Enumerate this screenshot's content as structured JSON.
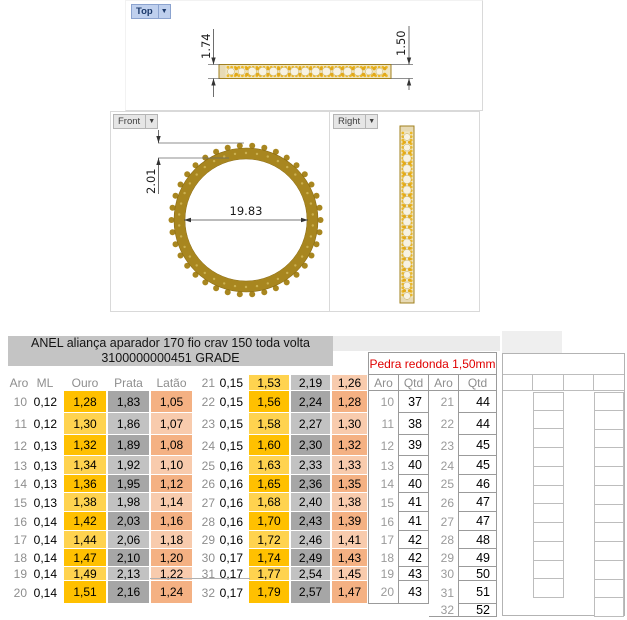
{
  "views": {
    "top": {
      "label": "Top",
      "dim_left": "1.74",
      "dim_right": "1.50"
    },
    "front": {
      "label": "Front",
      "dim_thickness": "2.01",
      "dim_diameter": "19.83"
    },
    "right": {
      "label": "Right"
    }
  },
  "spec_header": {
    "line1": "ANEL aliança aparador 170 fio crav 150 toda volta",
    "line2": "3100000000451 GRADE"
  },
  "main_table": {
    "headers": [
      "Aro",
      "ML",
      "Ouro",
      "Prata",
      "Latão"
    ],
    "rows_left": [
      {
        "aro": "10",
        "ml": "0,12",
        "ouro": "1,28",
        "prata": "1,83",
        "latao": "1,05"
      },
      {
        "aro": "11",
        "ml": "0,12",
        "ouro": "1,30",
        "prata": "1,86",
        "latao": "1,07"
      },
      {
        "aro": "12",
        "ml": "0,13",
        "ouro": "1,32",
        "prata": "1,89",
        "latao": "1,08"
      },
      {
        "aro": "13",
        "ml": "0,13",
        "ouro": "1,34",
        "prata": "1,92",
        "latao": "1,10"
      },
      {
        "aro": "14",
        "ml": "0,13",
        "ouro": "1,36",
        "prata": "1,95",
        "latao": "1,12"
      },
      {
        "aro": "15",
        "ml": "0,13",
        "ouro": "1,38",
        "prata": "1,98",
        "latao": "1,14"
      },
      {
        "aro": "16",
        "ml": "0,14",
        "ouro": "1,42",
        "prata": "2,03",
        "latao": "1,16"
      },
      {
        "aro": "17",
        "ml": "0,14",
        "ouro": "1,44",
        "prata": "2,06",
        "latao": "1,18"
      },
      {
        "aro": "18",
        "ml": "0,14",
        "ouro": "1,47",
        "prata": "2,10",
        "latao": "1,20"
      },
      {
        "aro": "19",
        "ml": "0,14",
        "ouro": "1,49",
        "prata": "2,13",
        "latao": "1,22"
      },
      {
        "aro": "20",
        "ml": "0,14",
        "ouro": "1,51",
        "prata": "2,16",
        "latao": "1,24"
      }
    ],
    "rows_right": [
      {
        "aro": "21",
        "ml": "0,15",
        "ouro": "1,53",
        "prata": "2,19",
        "latao": "1,26"
      },
      {
        "aro": "22",
        "ml": "0,15",
        "ouro": "1,56",
        "prata": "2,24",
        "latao": "1,28"
      },
      {
        "aro": "23",
        "ml": "0,15",
        "ouro": "1,58",
        "prata": "2,27",
        "latao": "1,30"
      },
      {
        "aro": "24",
        "ml": "0,15",
        "ouro": "1,60",
        "prata": "2,30",
        "latao": "1,32"
      },
      {
        "aro": "25",
        "ml": "0,16",
        "ouro": "1,63",
        "prata": "2,33",
        "latao": "1,33"
      },
      {
        "aro": "26",
        "ml": "0,16",
        "ouro": "1,65",
        "prata": "2,36",
        "latao": "1,35"
      },
      {
        "aro": "27",
        "ml": "0,16",
        "ouro": "1,68",
        "prata": "2,40",
        "latao": "1,38"
      },
      {
        "aro": "28",
        "ml": "0,16",
        "ouro": "1,70",
        "prata": "2,43",
        "latao": "1,39"
      },
      {
        "aro": "29",
        "ml": "0,16",
        "ouro": "1,72",
        "prata": "2,46",
        "latao": "1,41"
      },
      {
        "aro": "30",
        "ml": "0,17",
        "ouro": "1,74",
        "prata": "2,49",
        "latao": "1,43"
      },
      {
        "aro": "31",
        "ml": "0,17",
        "ouro": "1,77",
        "prata": "2,54",
        "latao": "1,45"
      },
      {
        "aro": "32",
        "ml": "0,17",
        "ouro": "1,79",
        "prata": "2,57",
        "latao": "1,47"
      }
    ]
  },
  "stone_table": {
    "title": "Pedra redonda 1,50mm",
    "headers": [
      "Aro",
      "Qtd",
      "Aro",
      "Qtd"
    ],
    "rows_left": [
      {
        "aro": "10",
        "qtd": "37"
      },
      {
        "aro": "11",
        "qtd": "38"
      },
      {
        "aro": "12",
        "qtd": "39"
      },
      {
        "aro": "13",
        "qtd": "40"
      },
      {
        "aro": "14",
        "qtd": "40"
      },
      {
        "aro": "15",
        "qtd": "41"
      },
      {
        "aro": "16",
        "qtd": "41"
      },
      {
        "aro": "17",
        "qtd": "42"
      },
      {
        "aro": "18",
        "qtd": "42"
      },
      {
        "aro": "19",
        "qtd": "43"
      },
      {
        "aro": "20",
        "qtd": "43"
      }
    ],
    "rows_right": [
      {
        "aro": "21",
        "qtd": "44"
      },
      {
        "aro": "22",
        "qtd": "44"
      },
      {
        "aro": "23",
        "qtd": "45"
      },
      {
        "aro": "24",
        "qtd": "45"
      },
      {
        "aro": "25",
        "qtd": "46"
      },
      {
        "aro": "26",
        "qtd": "47"
      },
      {
        "aro": "27",
        "qtd": "47"
      },
      {
        "aro": "28",
        "qtd": "48"
      },
      {
        "aro": "29",
        "qtd": "49"
      },
      {
        "aro": "30",
        "qtd": "50"
      },
      {
        "aro": "31",
        "qtd": "51"
      },
      {
        "aro": "32",
        "qtd": "52"
      }
    ]
  },
  "empty_grid": {
    "left_rows": 11,
    "right_rows": 12,
    "columns": 4
  },
  "colors": {
    "gold_dark": "#FFC000",
    "gold_light": "#FFD34F",
    "silver_dark": "#A6A6A6",
    "silver_light": "#C2C2C2",
    "brass_dark": "#F4B183",
    "brass_light": "#F8CBAD",
    "header_bg": "#C4C4C4",
    "stone_title": "#E00000",
    "line": "#9B9B9B",
    "ring_gold": "#A8861F",
    "bead_gold": "#ECB827"
  }
}
